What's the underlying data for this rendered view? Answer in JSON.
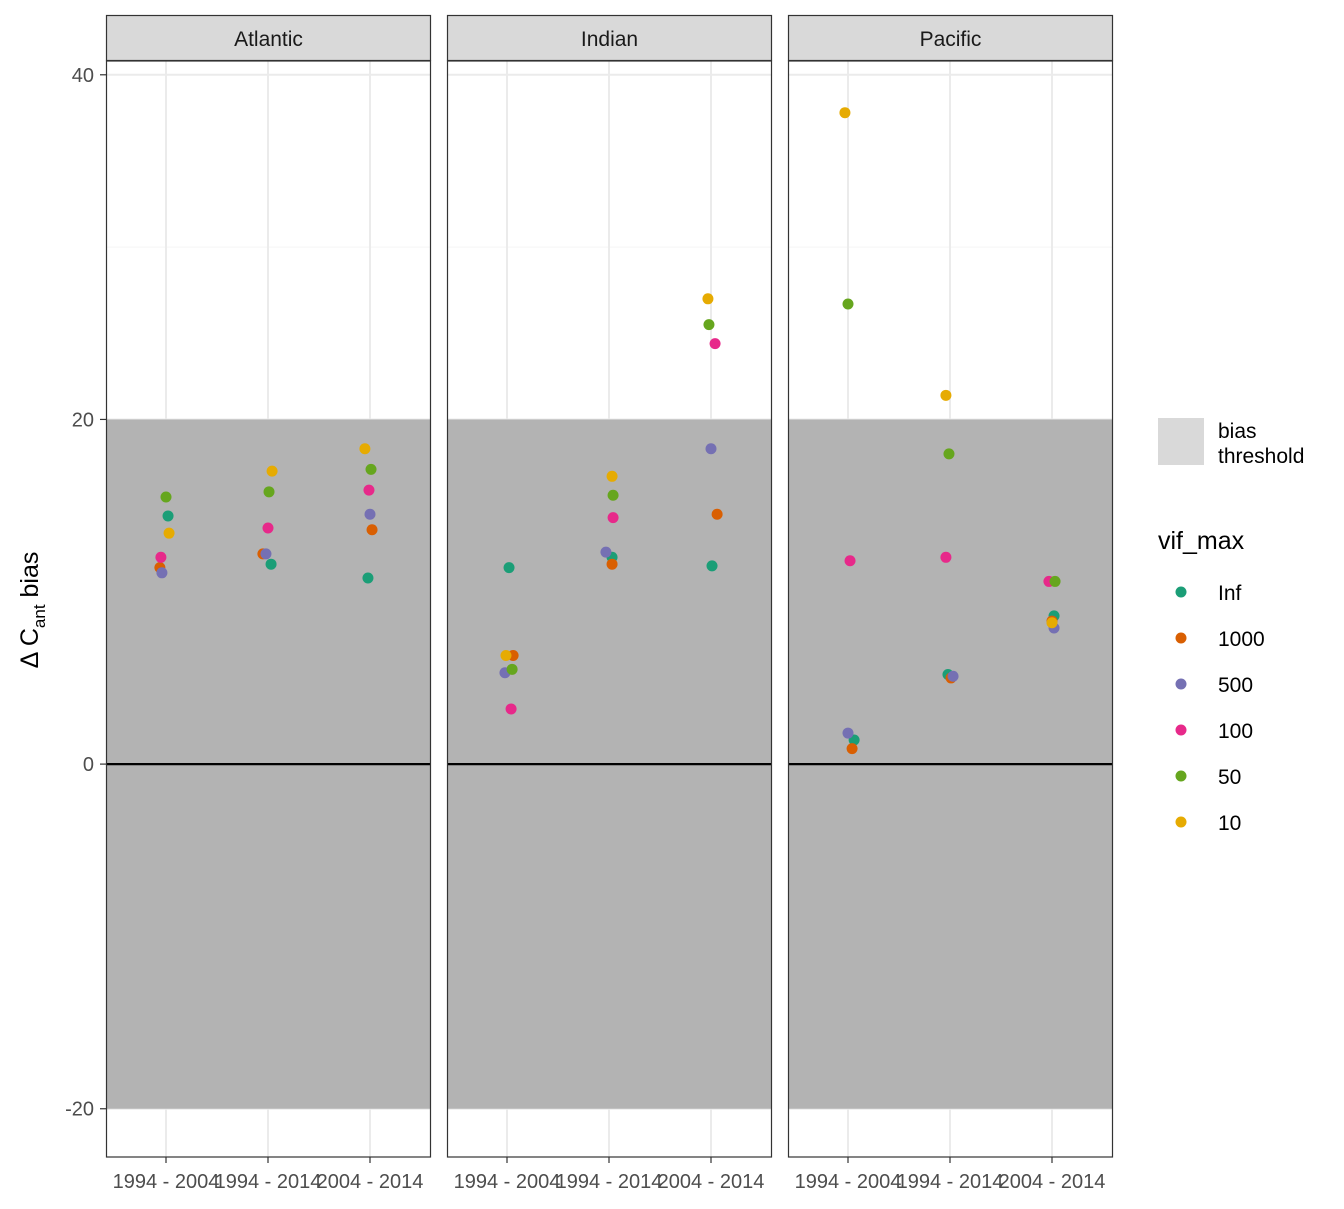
{
  "chart_data": {
    "type": "scatter",
    "ylabel": {
      "prefix": "Δ C",
      "sub": "ant",
      "suffix": " bias"
    },
    "ylim": [
      -22.8,
      40.8
    ],
    "yticks": [
      -20,
      0,
      20,
      40
    ],
    "ytick_labels": [
      "-20",
      "0",
      "20",
      "40"
    ],
    "categories": [
      "1994 - 2004",
      "1994 - 2014",
      "2004 - 2014"
    ],
    "band": {
      "ymin": -20,
      "ymax": 20
    },
    "hline": 0,
    "grid": true,
    "facets": [
      {
        "name": "Atlantic",
        "series": [
          {
            "name": "Inf",
            "values": [
              [
                0.02,
                14.4
              ],
              [
                0.03,
                11.6
              ],
              [
                -0.02,
                10.8
              ]
            ]
          },
          {
            "name": "1000",
            "values": [
              [
                -0.06,
                11.4
              ],
              [
                -0.05,
                12.2
              ],
              [
                0.02,
                13.6
              ]
            ]
          },
          {
            "name": "500",
            "values": [
              [
                -0.04,
                11.1
              ],
              [
                -0.02,
                12.2
              ],
              [
                0.0,
                14.5
              ]
            ]
          },
          {
            "name": "100",
            "values": [
              [
                -0.05,
                12.0
              ],
              [
                0.0,
                13.7
              ],
              [
                -0.01,
                15.9
              ]
            ]
          },
          {
            "name": "50",
            "values": [
              [
                0.0,
                15.5
              ],
              [
                0.01,
                15.8
              ],
              [
                0.01,
                17.1
              ]
            ]
          },
          {
            "name": "10",
            "values": [
              [
                0.03,
                13.4
              ],
              [
                0.04,
                17.0
              ],
              [
                -0.05,
                18.3
              ]
            ]
          }
        ]
      },
      {
        "name": "Indian",
        "series": [
          {
            "name": "Inf",
            "values": [
              [
                0.02,
                11.4
              ],
              [
                0.03,
                12.0
              ],
              [
                0.01,
                11.5
              ]
            ]
          },
          {
            "name": "1000",
            "values": [
              [
                0.06,
                6.3
              ],
              [
                0.03,
                11.6
              ],
              [
                0.06,
                14.5
              ]
            ]
          },
          {
            "name": "500",
            "values": [
              [
                -0.02,
                5.3
              ],
              [
                -0.03,
                12.3
              ],
              [
                0.0,
                18.3
              ]
            ]
          },
          {
            "name": "100",
            "values": [
              [
                0.04,
                3.2
              ],
              [
                0.04,
                14.3
              ],
              [
                0.04,
                24.4
              ]
            ]
          },
          {
            "name": "50",
            "values": [
              [
                0.05,
                5.5
              ],
              [
                0.04,
                15.6
              ],
              [
                -0.02,
                25.5
              ]
            ]
          },
          {
            "name": "10",
            "values": [
              [
                -0.01,
                6.3
              ],
              [
                0.03,
                16.7
              ],
              [
                -0.03,
                27.0
              ]
            ]
          }
        ]
      },
      {
        "name": "Pacific",
        "series": [
          {
            "name": "Inf",
            "values": [
              [
                0.06,
                1.4
              ],
              [
                -0.02,
                5.2
              ],
              [
                0.02,
                8.6
              ]
            ]
          },
          {
            "name": "1000",
            "values": [
              [
                0.04,
                0.9
              ],
              [
                0.01,
                5.0
              ],
              [
                0.0,
                8.3
              ]
            ]
          },
          {
            "name": "500",
            "values": [
              [
                0.0,
                1.8
              ],
              [
                0.03,
                5.1
              ],
              [
                0.02,
                7.9
              ]
            ]
          },
          {
            "name": "100",
            "values": [
              [
                0.02,
                11.8
              ],
              [
                -0.04,
                12.0
              ],
              [
                -0.03,
                10.6
              ]
            ]
          },
          {
            "name": "50",
            "values": [
              [
                0.0,
                26.7
              ],
              [
                -0.01,
                18.0
              ],
              [
                0.03,
                10.6
              ]
            ]
          },
          {
            "name": "10",
            "values": [
              [
                -0.03,
                37.8
              ],
              [
                -0.04,
                21.4
              ],
              [
                0.0,
                8.2
              ]
            ]
          }
        ]
      }
    ],
    "legend": {
      "placement": "right",
      "band_label": [
        "bias",
        "threshold"
      ],
      "band_color": "#d9d9d9",
      "title": "vif_max",
      "items": [
        {
          "name": "Inf",
          "color": "#1b9e77"
        },
        {
          "name": "1000",
          "color": "#d95f02"
        },
        {
          "name": "500",
          "color": "#7570b3"
        },
        {
          "name": "100",
          "color": "#e7298a"
        },
        {
          "name": "50",
          "color": "#66a61e"
        },
        {
          "name": "10",
          "color": "#e6ab02"
        }
      ]
    },
    "colors": {
      "band": "#b3b3b3",
      "strip": "#d9d9d9",
      "grid_major": "#ebebeb",
      "grid_minor": "#f5f5f5",
      "zero_line": "#000000"
    }
  }
}
